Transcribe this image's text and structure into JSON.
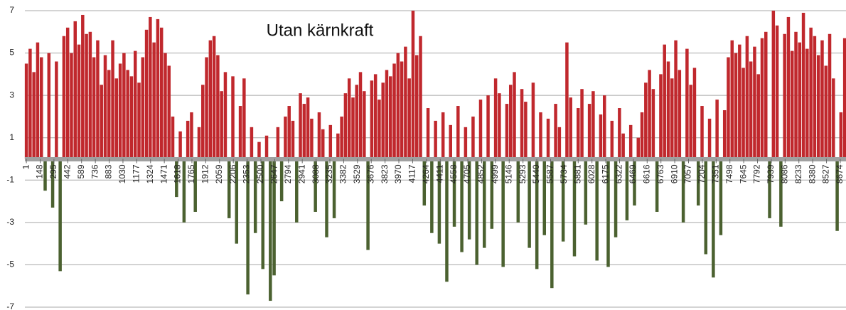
{
  "chart_data": {
    "type": "bar",
    "title": "Utan kärnkraft",
    "x": [
      1,
      41,
      81,
      121,
      161,
      201,
      241,
      281,
      321,
      361,
      401,
      441,
      481,
      521,
      561,
      601,
      641,
      681,
      721,
      761,
      801,
      841,
      881,
      921,
      961,
      1001,
      1041,
      1081,
      1121,
      1161,
      1201,
      1241,
      1281,
      1321,
      1361,
      1401,
      1441,
      1481,
      1521,
      1561,
      1601,
      1641,
      1681,
      1721,
      1761,
      1801,
      1841,
      1881,
      1921,
      1961,
      2001,
      2041,
      2081,
      2121,
      2161,
      2201,
      2241,
      2281,
      2321,
      2361,
      2401,
      2441,
      2481,
      2521,
      2561,
      2601,
      2641,
      2681,
      2721,
      2761,
      2801,
      2841,
      2881,
      2921,
      2961,
      3001,
      3041,
      3081,
      3121,
      3161,
      3201,
      3241,
      3281,
      3321,
      3361,
      3401,
      3441,
      3481,
      3521,
      3561,
      3601,
      3641,
      3681,
      3721,
      3761,
      3801,
      3841,
      3881,
      3921,
      3961,
      4001,
      4041,
      4081,
      4121,
      4161,
      4201,
      4241,
      4281,
      4321,
      4361,
      4401,
      4441,
      4481,
      4521,
      4561,
      4601,
      4641,
      4681,
      4721,
      4761,
      4801,
      4841,
      4881,
      4921,
      4961,
      5001,
      5041,
      5081,
      5121,
      5161,
      5201,
      5241,
      5281,
      5321,
      5361,
      5401,
      5441,
      5481,
      5521,
      5561,
      5601,
      5641,
      5681,
      5721,
      5761,
      5801,
      5841,
      5881,
      5921,
      5961,
      6001,
      6041,
      6081,
      6121,
      6161,
      6201,
      6241,
      6281,
      6321,
      6361,
      6401,
      6441,
      6481,
      6521,
      6561,
      6601,
      6641,
      6681,
      6721,
      6761,
      6801,
      6841,
      6881,
      6921,
      6961,
      7001,
      7041,
      7081,
      7121,
      7161,
      7201,
      7241,
      7281,
      7321,
      7361,
      7401,
      7441,
      7481,
      7521,
      7561,
      7601,
      7641,
      7681,
      7721,
      7761,
      7801,
      7841,
      7881,
      7921,
      7961,
      8001,
      8041,
      8081,
      8121,
      8161,
      8201,
      8241,
      8281,
      8321,
      8361,
      8401,
      8441,
      8481,
      8521,
      8561,
      8601,
      8641,
      8681,
      8721
    ],
    "values": [
      4.5,
      5.2,
      4.1,
      5.5,
      4.8,
      -1.5,
      5.0,
      -2.3,
      4.6,
      -5.3,
      5.8,
      6.2,
      5.0,
      6.5,
      5.4,
      6.8,
      5.9,
      6.0,
      4.8,
      5.6,
      3.5,
      4.9,
      4.2,
      5.6,
      3.8,
      4.5,
      5.0,
      4.2,
      3.9,
      5.1,
      3.6,
      4.8,
      6.1,
      6.7,
      5.5,
      6.6,
      6.2,
      5.0,
      4.4,
      2.0,
      -1.8,
      1.3,
      -3.0,
      1.8,
      2.2,
      -2.5,
      1.5,
      3.5,
      4.8,
      5.6,
      5.8,
      4.9,
      3.2,
      4.1,
      -2.8,
      3.9,
      -4.0,
      2.5,
      3.8,
      -6.4,
      1.5,
      -3.5,
      0.8,
      -5.2,
      1.1,
      -6.7,
      -5.5,
      1.5,
      -2.0,
      2.0,
      2.5,
      1.8,
      -3.0,
      3.1,
      2.6,
      2.9,
      1.9,
      -2.5,
      2.2,
      1.4,
      -3.7,
      1.6,
      -2.8,
      1.2,
      2.0,
      3.1,
      3.8,
      2.9,
      3.5,
      4.1,
      3.2,
      -4.3,
      3.7,
      4.0,
      2.8,
      3.6,
      4.2,
      3.9,
      4.5,
      5.0,
      4.6,
      5.3,
      3.8,
      7.0,
      4.9,
      5.8,
      -2.2,
      2.4,
      -3.5,
      1.8,
      -4.0,
      2.2,
      -5.8,
      1.6,
      -3.2,
      2.5,
      -4.4,
      1.5,
      -3.8,
      2.0,
      -5.0,
      2.8,
      -4.2,
      3.0,
      -3.3,
      3.8,
      3.1,
      -5.1,
      2.6,
      3.5,
      4.1,
      -3.0,
      3.3,
      2.7,
      -4.2,
      3.6,
      -5.2,
      2.2,
      -3.6,
      1.9,
      -6.1,
      2.6,
      1.5,
      -3.9,
      5.5,
      2.9,
      -4.6,
      2.4,
      3.3,
      -3.1,
      2.6,
      3.2,
      -4.8,
      2.1,
      3.0,
      -5.1,
      1.8,
      -3.7,
      2.4,
      1.2,
      -2.9,
      1.6,
      -2.2,
      1.0,
      2.2,
      3.6,
      4.2,
      3.3,
      -2.5,
      4.0,
      5.4,
      4.6,
      3.8,
      5.6,
      4.2,
      -3.0,
      5.2,
      3.5,
      4.3,
      -2.2,
      2.5,
      -4.5,
      1.9,
      -5.6,
      2.8,
      -3.6,
      2.3,
      4.8,
      5.6,
      5.0,
      5.4,
      4.3,
      5.8,
      4.6,
      5.3,
      4.0,
      5.7,
      6.0,
      -2.8,
      7.0,
      6.3,
      -3.2,
      5.9,
      6.7,
      5.1,
      6.0,
      5.5,
      6.9,
      5.2,
      6.2,
      5.8,
      4.9,
      5.6,
      4.4,
      5.9,
      3.8,
      -3.4,
      2.2,
      5.7
    ],
    "positive_color": "#c0282d",
    "negative_color": "#4b6130",
    "xlim": [
      -15,
      8735
    ],
    "xticks": [
      1,
      148,
      295,
      442,
      589,
      736,
      883,
      1030,
      1177,
      1324,
      1471,
      1618,
      1765,
      1912,
      2059,
      2206,
      2353,
      2500,
      2647,
      2794,
      2941,
      3088,
      3235,
      3382,
      3529,
      3676,
      3823,
      3970,
      4117,
      4264,
      4411,
      4558,
      4705,
      4852,
      4999,
      5146,
      5293,
      5440,
      5587,
      5734,
      5881,
      6028,
      6175,
      6322,
      6469,
      6616,
      6763,
      6910,
      7057,
      7204,
      7351,
      7498,
      7645,
      7792,
      7939,
      8086,
      8233,
      8380,
      8527,
      8674
    ],
    "ylim": [
      -7,
      7
    ],
    "yticks": [
      -7,
      -5,
      -3,
      -1,
      1,
      3,
      5,
      7
    ],
    "grid": true
  }
}
